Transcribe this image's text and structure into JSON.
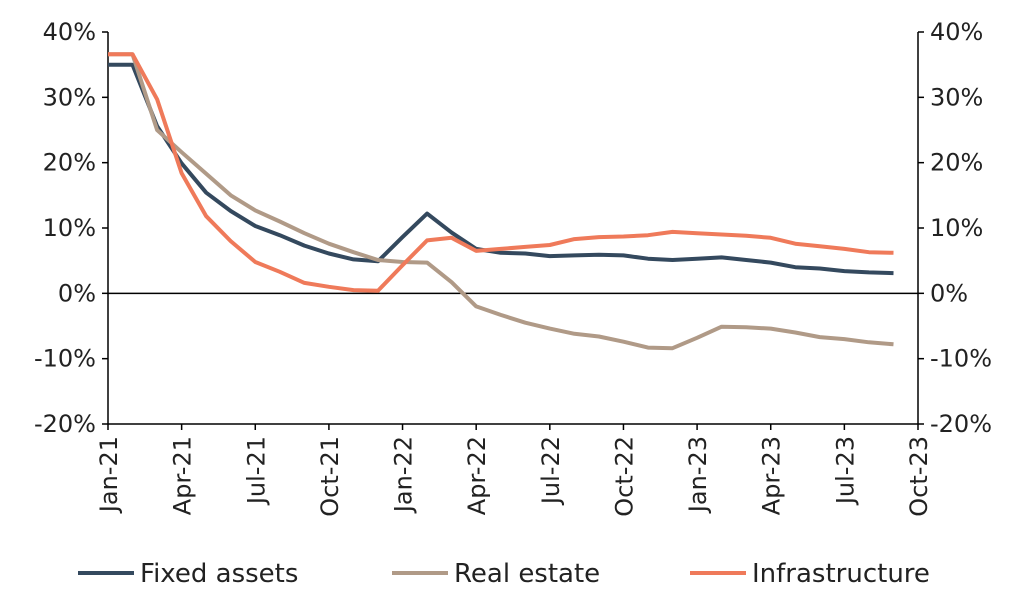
{
  "chart_data": {
    "type": "line",
    "title": "",
    "xlabel": "",
    "ylabel": "",
    "ylim": [
      -20,
      40
    ],
    "y_ticks": [
      "40%",
      "30%",
      "20%",
      "10%",
      "0%",
      "-10%",
      "-20%"
    ],
    "y2_ticks": [
      "40%",
      "30%",
      "20%",
      "10%",
      "0%",
      "-10%",
      "-20%"
    ],
    "x_ticks": [
      "Jan-21",
      "Apr-21",
      "Jul-21",
      "Oct-21",
      "Jan-22",
      "Apr-22",
      "Jul-22",
      "Oct-22",
      "Jan-23",
      "Apr-23",
      "Jul-23",
      "Oct-23"
    ],
    "x": [
      "Jan-21",
      "Feb-21",
      "Mar-21",
      "Apr-21",
      "May-21",
      "Jun-21",
      "Jul-21",
      "Aug-21",
      "Sep-21",
      "Oct-21",
      "Nov-21",
      "Dec-21",
      "Jan-22",
      "Feb-22",
      "Mar-22",
      "Apr-22",
      "May-22",
      "Jun-22",
      "Jul-22",
      "Aug-22",
      "Sep-22",
      "Oct-22",
      "Nov-22",
      "Dec-22",
      "Jan-23",
      "Feb-23",
      "Mar-23",
      "Apr-23",
      "May-23",
      "Jun-23",
      "Jul-23",
      "Aug-23",
      "Sep-23"
    ],
    "series": [
      {
        "name": "Fixed assets",
        "color": "#34495e",
        "values": [
          35.0,
          35.0,
          25.6,
          19.9,
          15.4,
          12.6,
          10.3,
          8.9,
          7.3,
          6.1,
          5.2,
          4.9,
          8.6,
          12.2,
          9.3,
          6.8,
          6.2,
          6.1,
          5.7,
          5.8,
          5.9,
          5.8,
          5.3,
          5.1,
          5.3,
          5.5,
          5.1,
          4.7,
          4.0,
          3.8,
          3.4,
          3.2,
          3.1
        ]
      },
      {
        "name": "Real estate",
        "color": "#b09a87",
        "values": [
          36.6,
          36.6,
          25.0,
          21.6,
          18.3,
          15.0,
          12.7,
          11.0,
          9.2,
          7.6,
          6.3,
          5.1,
          4.8,
          4.7,
          1.7,
          -2.0,
          -3.3,
          -4.5,
          -5.4,
          -6.2,
          -6.6,
          -7.4,
          -8.3,
          -8.4,
          -6.8,
          -5.1,
          -5.2,
          -5.4,
          -6.0,
          -6.7,
          -7.0,
          -7.5,
          -7.8
        ]
      },
      {
        "name": "Infrastructure",
        "color": "#ef7a5a",
        "values": [
          36.6,
          36.6,
          29.7,
          18.4,
          11.8,
          8.0,
          4.8,
          3.3,
          1.6,
          1.0,
          0.5,
          0.4,
          4.3,
          8.1,
          8.5,
          6.5,
          6.8,
          7.1,
          7.4,
          8.3,
          8.6,
          8.7,
          8.9,
          9.4,
          9.2,
          9.0,
          8.8,
          8.5,
          7.6,
          7.2,
          6.8,
          6.3,
          6.2
        ]
      }
    ],
    "legend_position": "bottom",
    "grid": false,
    "secondary_y_axis": true
  }
}
